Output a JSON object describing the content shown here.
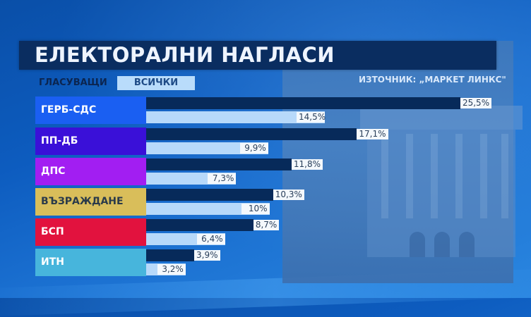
{
  "header": {
    "title": "ЕЛЕКТОРАЛНИ НАГЛАСИ",
    "filter_label": "ГЛАСУВАЩИ",
    "filter_value": "ВСИЧКИ",
    "source": "ИЗТОЧНИК: „МАРКЕТ ЛИНКС\""
  },
  "colors": {
    "background": "#0d5cbf",
    "title_bar": "#0a2d60",
    "voters_bar": "#072a5a",
    "all_bar": "#b7d9fa"
  },
  "rows": [
    {
      "party": "ГЕРБ-СДС",
      "color": "#1a5ff2",
      "text_color": "#ffffff",
      "voters": 25.5,
      "voters_label": "25,5%",
      "all": 14.5,
      "all_label": "14,5%"
    },
    {
      "party": "ПП-ДБ",
      "color": "#3a10d8",
      "text_color": "#ffffff",
      "voters": 17.1,
      "voters_label": "17,1%",
      "all": 9.9,
      "all_label": "9,9%"
    },
    {
      "party": "ДПС",
      "color": "#a21ef2",
      "text_color": "#ffffff",
      "voters": 11.8,
      "voters_label": "11,8%",
      "all": 7.3,
      "all_label": "7,3%"
    },
    {
      "party": "ВЪЗРАЖДАНЕ",
      "color": "#d9be5a",
      "text_color": "#2a3a4a",
      "voters": 10.3,
      "voters_label": "10,3%",
      "all": 10.0,
      "all_label": "10%"
    },
    {
      "party": "БСП",
      "color": "#e2123e",
      "text_color": "#ffffff",
      "voters": 8.7,
      "voters_label": "8,7%",
      "all": 6.4,
      "all_label": "6,4%"
    },
    {
      "party": "ИТН",
      "color": "#47b5dc",
      "text_color": "#ffffff",
      "voters": 3.9,
      "voters_label": "3,9%",
      "all": 3.2,
      "all_label": "3,2%"
    }
  ],
  "chart_data": {
    "type": "bar",
    "orientation": "horizontal",
    "title": "ЕЛЕКТОРАЛНИ НАГЛАСИ",
    "subtitle": "ИЗТОЧНИК: „МАРКЕТ ЛИНКС\"",
    "categories": [
      "ГЕРБ-СДС",
      "ПП-ДБ",
      "ДПС",
      "ВЪЗРАЖДАНЕ",
      "БСП",
      "ИТН"
    ],
    "series": [
      {
        "name": "ГЛАСУВАЩИ",
        "color": "#072a5a",
        "values": [
          25.5,
          17.1,
          11.8,
          10.3,
          8.7,
          3.9
        ]
      },
      {
        "name": "ВСИЧКИ",
        "color": "#b7d9fa",
        "values": [
          14.5,
          9.9,
          7.3,
          10.0,
          6.4,
          3.2
        ]
      }
    ],
    "unit": "%",
    "xlabel": "",
    "ylabel": "",
    "legend": [
      "ГЛАСУВАЩИ",
      "ВСИЧКИ"
    ],
    "legend_position": "top-left",
    "grid": false
  }
}
